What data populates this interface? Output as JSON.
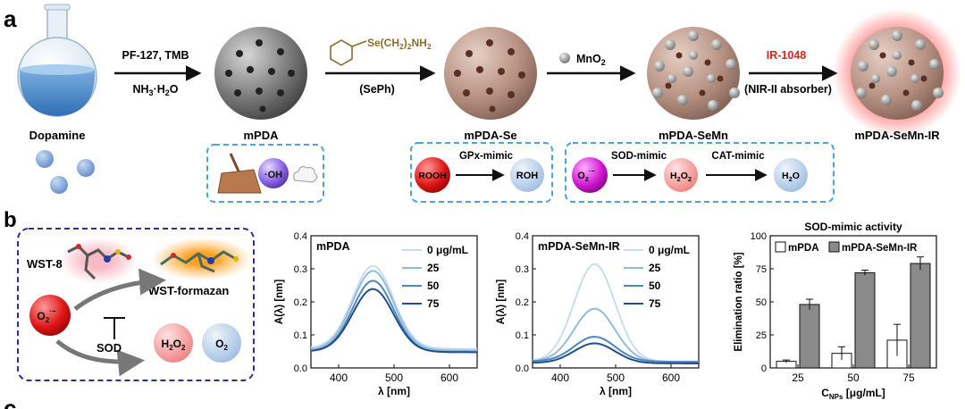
{
  "panel_a": {
    "letter": "a",
    "steps": [
      {
        "label": "Dopamine"
      },
      {
        "label": "mPDA"
      },
      {
        "label": "mPDA-Se"
      },
      {
        "label": "mPDA-SeMn"
      },
      {
        "label": "mPDA-SeMn-IR"
      }
    ],
    "arrow1_top": "PF-127, TMB",
    "arrow1_bottom_main": "NH",
    "arrow1_bottom_sub": "3",
    "arrow1_bottom_rest": "·H",
    "arrow1_bottom_sub2": "2",
    "arrow1_bottom_end": "O",
    "arrow2_formula": "Se(CH",
    "arrow2_formula_sub1": "2",
    "arrow2_formula_mid": ")",
    "arrow2_formula_sub2": "2",
    "arrow2_formula_end": "NH",
    "arrow2_formula_sub3": "2",
    "arrow2_bottom": "(SePh)",
    "arrow3_top": "MnO",
    "arrow3_top_sub": "2",
    "arrow4_top": "IR-1048",
    "arrow4_bottom": "(NIR-II absorber)",
    "box1_oh": "·OH",
    "box2_mimic": "GPx-mimic",
    "box2_in": "ROOH",
    "box2_out": "ROH",
    "box3_mimic1": "SOD-mimic",
    "box3_in": "O",
    "box3_in_sub": "2",
    "box3_in_sup": "·−",
    "box3_mid": "H",
    "box3_mid_sub": "2",
    "box3_mid_end": "O",
    "box3_mid_sub2": "2",
    "box3_mimic2": "CAT-mimic",
    "box3_out": "H",
    "box3_out_sub": "2",
    "box3_out_end": "O"
  },
  "panel_b": {
    "letter": "b",
    "scheme": {
      "wst8": "WST-8",
      "formazan": "WST-formazan",
      "radical": "O",
      "radical_sub": "2",
      "radical_sup": "·−",
      "sod": "SOD",
      "h2o2_main": "H",
      "h2o2_sub": "2",
      "h2o2_end": "O",
      "h2o2_sub2": "2",
      "o2_main": "O",
      "o2_sub": "2"
    }
  },
  "panel_c": {
    "letter": "c"
  },
  "colors": {
    "dash_box": "#4aa3df",
    "scheme_box": "#2b2f8f",
    "red_text": "#e0201b",
    "bar_gray": "#8a8a8a",
    "spectra": [
      "#c9ddee",
      "#93bbdc",
      "#4f86bd",
      "#1f4f8a"
    ]
  },
  "chart_data": [
    {
      "type": "line",
      "title": "mPDA",
      "xlabel": "λ [nm]",
      "ylabel": "A(λ) [nm]",
      "xlim": [
        350,
        650
      ],
      "ylim": [
        0,
        0.4
      ],
      "xticks": [
        400,
        500,
        600
      ],
      "yticks": [
        0.0,
        0.1,
        0.2,
        0.3,
        0.4
      ],
      "legend": "top-right",
      "series": [
        {
          "name": "0 μg/mL",
          "peak": 0.31,
          "base": 0.06
        },
        {
          "name": "25",
          "peak": 0.295,
          "base": 0.055
        },
        {
          "name": "50",
          "peak": 0.265,
          "base": 0.05
        },
        {
          "name": "75",
          "peak": 0.24,
          "base": 0.05
        }
      ]
    },
    {
      "type": "line",
      "title": "mPDA-SeMn-IR",
      "xlabel": "λ [nm]",
      "ylabel": "A(λ) [nm]",
      "xlim": [
        350,
        650
      ],
      "ylim": [
        0,
        0.4
      ],
      "xticks": [
        400,
        500,
        600
      ],
      "yticks": [
        0.0,
        0.1,
        0.2,
        0.3,
        0.4
      ],
      "legend": "top-right",
      "series": [
        {
          "name": "0 μg/mL",
          "peak": 0.315,
          "base": 0.02
        },
        {
          "name": "25",
          "peak": 0.18,
          "base": 0.02
        },
        {
          "name": "50",
          "peak": 0.095,
          "base": 0.02
        },
        {
          "name": "75",
          "peak": 0.075,
          "base": 0.015
        }
      ]
    },
    {
      "type": "bar",
      "title": "SOD-mimic activity",
      "xlabel_main": "C",
      "xlabel_sub": "NPs",
      "xlabel_rest": " [μg/mL]",
      "ylabel": "Elimination ratio [%]",
      "ylim": [
        0,
        100
      ],
      "yticks": [
        0,
        25,
        50,
        75,
        100
      ],
      "categories": [
        "25",
        "50",
        "75"
      ],
      "legend": "top",
      "series": [
        {
          "name": "mPDA",
          "values": [
            5,
            11,
            21
          ],
          "errors": [
            1,
            5,
            12
          ]
        },
        {
          "name": "mPDA-SeMn-IR",
          "values": [
            48,
            72,
            79
          ],
          "errors": [
            4,
            2,
            5
          ]
        }
      ]
    }
  ]
}
